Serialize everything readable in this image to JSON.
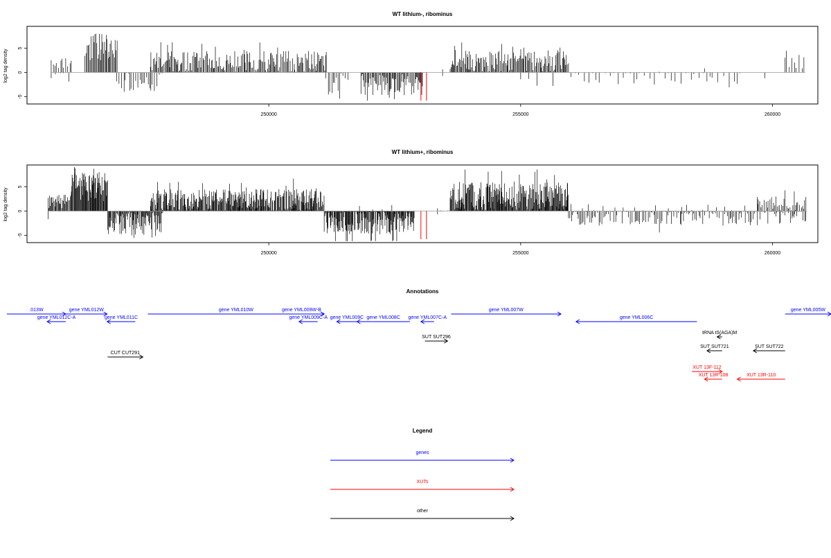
{
  "chart_data": [
    {
      "type": "bar",
      "title": "WT lithium-, ribominus",
      "ylabel": "log2 tag density",
      "xlim": [
        245200,
        260900
      ],
      "ylim": [
        -6.5,
        9.5
      ],
      "xticks": [
        "250000",
        "255000",
        "260000"
      ],
      "yticks": [
        "-5",
        "0",
        "5"
      ],
      "grid": false,
      "colors": {
        "bars": "#000000",
        "highlight": "#ff0000",
        "axis": "#000000"
      },
      "segments": [
        {
          "x0": 245680,
          "x1": 246080,
          "sign": 1,
          "base": 2.0,
          "amp": 1.2,
          "density": 4
        },
        {
          "x0": 245680,
          "x1": 246080,
          "sign": -1,
          "base": 0.8,
          "amp": 1.5,
          "density": 8
        },
        {
          "x0": 246350,
          "x1": 247000,
          "sign": 1,
          "base": 5.2,
          "amp": 2.8,
          "density": 2
        },
        {
          "x0": 246980,
          "x1": 247900,
          "sign": -1,
          "base": 1.8,
          "amp": 2.2,
          "density": 4
        },
        {
          "x0": 247650,
          "x1": 251150,
          "sign": 1,
          "base": 2.2,
          "amp": 2.2,
          "density": 2
        },
        {
          "x0": 251130,
          "x1": 251600,
          "sign": -1,
          "base": 2.2,
          "amp": 2.2,
          "density": 4
        },
        {
          "x0": 251830,
          "x1": 253050,
          "sign": -1,
          "base": 2.5,
          "amp": 2.2,
          "density": 2
        },
        {
          "x0": 253450,
          "x1": 253550,
          "sign": 1,
          "base": 0.4,
          "amp": 1.5,
          "density": 30
        },
        {
          "x0": 253450,
          "x1": 253550,
          "sign": -1,
          "base": 0.4,
          "amp": 0.6,
          "density": 40
        },
        {
          "x0": 253600,
          "x1": 255950,
          "sign": 1,
          "base": 2.4,
          "amp": 2.2,
          "density": 2
        },
        {
          "x0": 255000,
          "x1": 255900,
          "sign": -1,
          "base": 0.8,
          "amp": 1.2,
          "density": 25
        },
        {
          "x0": 256000,
          "x1": 259400,
          "sign": -1,
          "base": 1.3,
          "amp": 1.8,
          "density": 9
        },
        {
          "x0": 257750,
          "x1": 258500,
          "sign": 1,
          "base": 0.3,
          "amp": 0.8,
          "density": 60
        },
        {
          "x0": 258650,
          "x1": 258700,
          "sign": 1,
          "base": 1.0,
          "amp": 0.5,
          "density": 50
        },
        {
          "x0": 259850,
          "x1": 259900,
          "sign": -1,
          "base": 1.5,
          "amp": 1.0,
          "density": 30
        },
        {
          "x0": 260250,
          "x1": 260650,
          "sign": 1,
          "base": 2.0,
          "amp": 1.8,
          "density": 5
        }
      ],
      "highlight_bars": [
        {
          "x": 253020,
          "y": -5.8
        },
        {
          "x": 253130,
          "y": -5.8
        }
      ]
    },
    {
      "type": "bar",
      "title": "WT lithium+, ribominus",
      "ylabel": "log2 tag density",
      "xlim": [
        245200,
        260900
      ],
      "ylim": [
        -6.5,
        9.5
      ],
      "xticks": [
        "250000",
        "255000",
        "260000"
      ],
      "yticks": [
        "-5",
        "0",
        "5"
      ],
      "grid": false,
      "colors": {
        "bars": "#000000",
        "highlight": "#ff0000",
        "axis": "#000000"
      },
      "segments": [
        {
          "x0": 245620,
          "x1": 246080,
          "sign": 1,
          "base": 2.0,
          "amp": 1.4,
          "density": 1.5
        },
        {
          "x0": 245620,
          "x1": 245650,
          "sign": -1,
          "base": 1.8,
          "amp": 0.5,
          "density": 30
        },
        {
          "x0": 246080,
          "x1": 246800,
          "sign": 1,
          "base": 5.0,
          "amp": 3.0,
          "density": 1.2
        },
        {
          "x0": 246800,
          "x1": 247900,
          "sign": -1,
          "base": 2.4,
          "amp": 2.5,
          "density": 1.5
        },
        {
          "x0": 247650,
          "x1": 251100,
          "sign": 1,
          "base": 2.2,
          "amp": 2.4,
          "density": 1.2
        },
        {
          "x0": 251100,
          "x1": 252900,
          "sign": -1,
          "base": 2.0,
          "amp": 2.8,
          "density": 1.2
        },
        {
          "x0": 251800,
          "x1": 252600,
          "sign": 1,
          "base": 0.5,
          "amp": 1.0,
          "density": 40
        },
        {
          "x0": 253350,
          "x1": 253600,
          "sign": 1,
          "base": 0.6,
          "amp": 1.6,
          "density": 12
        },
        {
          "x0": 253350,
          "x1": 253600,
          "sign": -1,
          "base": 0.5,
          "amp": 1.2,
          "density": 18
        },
        {
          "x0": 253600,
          "x1": 255950,
          "sign": 1,
          "base": 3.0,
          "amp": 3.0,
          "density": 1.2
        },
        {
          "x0": 255950,
          "x1": 260680,
          "sign": -1,
          "base": 1.0,
          "amp": 2.0,
          "density": 3
        },
        {
          "x0": 256000,
          "x1": 260680,
          "sign": 1,
          "base": 0.5,
          "amp": 1.0,
          "density": 20
        },
        {
          "x0": 259700,
          "x1": 260680,
          "sign": 1,
          "base": 1.5,
          "amp": 1.5,
          "density": 3
        }
      ],
      "highlight_bars": [
        {
          "x": 253020,
          "y": -5.8
        },
        {
          "x": 253130,
          "y": -5.8
        }
      ]
    }
  ],
  "annotations": {
    "title": "Annotations",
    "features": [
      {
        "label": ".013W",
        "strand": "+",
        "color": "#0000ff",
        "start": 244800,
        "end": 245970,
        "row": 0
      },
      {
        "label": "gene YML012W",
        "strand": "+",
        "color": "#0000ff",
        "start": 245970,
        "end": 246790,
        "row": 0
      },
      {
        "label": "gene YML012C-A",
        "strand": "-",
        "color": "#0000ff",
        "start": 245600,
        "end": 245970,
        "row": 1
      },
      {
        "label": "gene YML011C",
        "strand": "-",
        "color": "#0000ff",
        "start": 246790,
        "end": 247350,
        "row": 1
      },
      {
        "label": "gene YML010W",
        "strand": "+",
        "color": "#0000ff",
        "start": 247600,
        "end": 251100,
        "row": 0
      },
      {
        "label": "gene YML009W-B",
        "strand": "+",
        "color": "#0000ff",
        "start": 250200,
        "end": 251100,
        "row": 0
      },
      {
        "label": "gene YML009C-A",
        "strand": "-",
        "color": "#0000ff",
        "start": 250600,
        "end": 250970,
        "row": 1
      },
      {
        "label": "gene YML009C",
        "strand": "-",
        "color": "#0000ff",
        "start": 251350,
        "end": 251750,
        "row": 1
      },
      {
        "label": "gene YML008C",
        "strand": "-",
        "color": "#0000ff",
        "start": 251750,
        "end": 252800,
        "row": 1
      },
      {
        "label": "gene YML007C-A",
        "strand": "-",
        "color": "#0000ff",
        "start": 253020,
        "end": 253280,
        "row": 1
      },
      {
        "label": "gene YML007W",
        "strand": "+",
        "color": "#0000ff",
        "start": 253620,
        "end": 255800,
        "row": 0
      },
      {
        "label": "gene YML006C",
        "strand": "-",
        "color": "#0000ff",
        "start": 256100,
        "end": 258500,
        "row": 1
      },
      {
        "label": "gene YML005W",
        "strand": "+",
        "color": "#0000ff",
        "start": 260250,
        "end": 261500,
        "row": 0
      },
      {
        "label": "tRNA tS(AGA)M",
        "strand": "-",
        "color": "#000000",
        "start": 258900,
        "end": 259000,
        "row": 2
      },
      {
        "label": "SUT SUT296",
        "strand": "+",
        "color": "#000000",
        "start": 253100,
        "end": 253550,
        "row": 3
      },
      {
        "label": "SUT SUT721",
        "strand": "-",
        "color": "#000000",
        "start": 258700,
        "end": 259000,
        "row": 4
      },
      {
        "label": "SUT SUT722",
        "strand": "-",
        "color": "#000000",
        "start": 259620,
        "end": 260250,
        "row": 4
      },
      {
        "label": "CUT CUT291",
        "strand": "+",
        "color": "#000000",
        "start": 246800,
        "end": 247500,
        "row": 5
      },
      {
        "label": "XUT 13F-112",
        "strand": "+",
        "color": "#ff0000",
        "start": 258400,
        "end": 259000,
        "row": 6
      },
      {
        "label": "XUT 13R-108",
        "strand": "-",
        "color": "#ff0000",
        "start": 258650,
        "end": 259000,
        "row": 7
      },
      {
        "label": "XUT 13R-110",
        "strand": "-",
        "color": "#ff0000",
        "start": 259300,
        "end": 260250,
        "row": 7
      }
    ]
  },
  "legend": {
    "title": "Legend",
    "items": [
      {
        "label": "genes",
        "color": "#0000ff"
      },
      {
        "label": "XUTs",
        "color": "#ff0000"
      },
      {
        "label": "other",
        "color": "#000000"
      }
    ]
  }
}
